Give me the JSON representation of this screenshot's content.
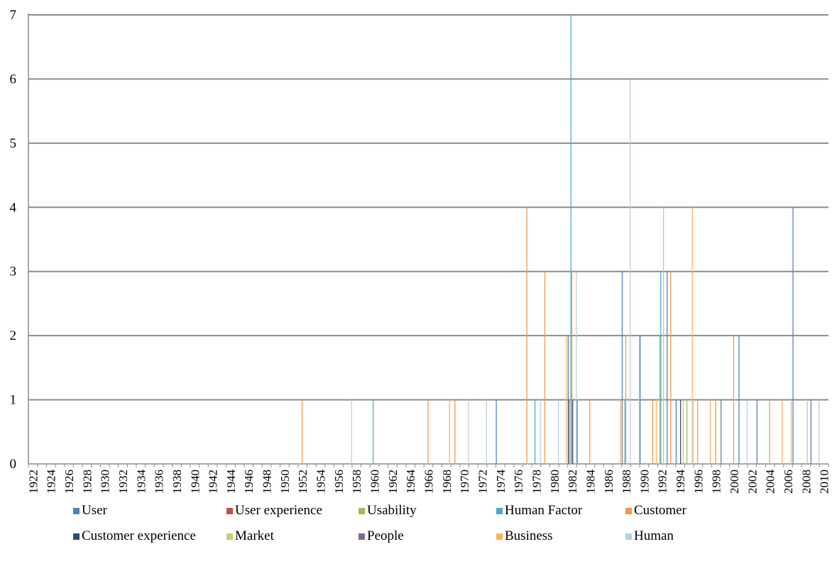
{
  "chart_data": {
    "type": "bar",
    "title": "",
    "xlabel": "",
    "ylabel": "",
    "ylim": [
      0,
      7
    ],
    "y_ticks": [
      "0",
      "1",
      "2",
      "3",
      "4",
      "5",
      "6",
      "7"
    ],
    "x_tick_labels": [
      "1922",
      "1924",
      "1926",
      "1928",
      "1930",
      "1932",
      "1934",
      "1936",
      "1938",
      "1940",
      "1942",
      "1944",
      "1946",
      "1948",
      "1950",
      "1952",
      "1954",
      "1956",
      "1958",
      "1960",
      "1962",
      "1964",
      "1966",
      "1968",
      "1970",
      "1972",
      "1974",
      "1976",
      "1978",
      "1980",
      "1982",
      "1984",
      "1986",
      "1988",
      "1990",
      "1992",
      "1994",
      "1996",
      "1998",
      "2000",
      "2002",
      "2004",
      "2006",
      "2008",
      "2010"
    ],
    "grid": true,
    "legend_position": "bottom",
    "years": [
      "1922",
      "1923",
      "1924",
      "1925",
      "1926",
      "1927",
      "1928",
      "1929",
      "1930",
      "1931",
      "1932",
      "1933",
      "1934",
      "1935",
      "1936",
      "1937",
      "1938",
      "1939",
      "1940",
      "1941",
      "1942",
      "1943",
      "1944",
      "1945",
      "1946",
      "1947",
      "1948",
      "1949",
      "1950",
      "1951",
      "1952",
      "1953",
      "1954",
      "1955",
      "1956",
      "1957",
      "1958",
      "1959",
      "1960",
      "1961",
      "1962",
      "1963",
      "1964",
      "1965",
      "1966",
      "1967",
      "1968",
      "1969",
      "1970",
      "1971",
      "1972",
      "1973",
      "1974",
      "1975",
      "1976",
      "1977",
      "1978",
      "1979",
      "1980",
      "1981",
      "1982",
      "1983",
      "1984",
      "1985",
      "1986",
      "1987",
      "1988",
      "1989",
      "1990",
      "1991",
      "1992",
      "1993",
      "1994",
      "1995",
      "1996",
      "1997",
      "1998",
      "1999",
      "2000",
      "2001",
      "2002",
      "2003",
      "2004",
      "2005",
      "2006",
      "2007",
      "2008",
      "2009",
      "2010"
    ],
    "series": [
      {
        "name": "User",
        "color": "#4f81bd",
        "points": [
          [
            "1974",
            1
          ],
          [
            "1982",
            2
          ],
          [
            "1983",
            1
          ],
          [
            "1988",
            3
          ],
          [
            "1990",
            2
          ],
          [
            "1993",
            3
          ],
          [
            "1994",
            1
          ],
          [
            "1999",
            1
          ],
          [
            "2001",
            2
          ],
          [
            "2003",
            1
          ],
          [
            "2007",
            4
          ],
          [
            "2009",
            1
          ]
        ]
      },
      {
        "name": "User experience",
        "color": "#c0504d",
        "points": [
          [
            "1982",
            1
          ]
        ]
      },
      {
        "name": "Usability",
        "color": "#9bbb59",
        "points": [
          [
            "1992",
            2
          ],
          [
            "1995",
            1
          ]
        ]
      },
      {
        "name": "Human Factor",
        "color": "#4bacc6",
        "points": [
          [
            "1960",
            1
          ],
          [
            "1978",
            1
          ],
          [
            "1982",
            7
          ],
          [
            "1988",
            1
          ],
          [
            "1992",
            3
          ]
        ]
      },
      {
        "name": "Customer",
        "color": "#f79646",
        "points": [
          [
            "1952",
            1
          ],
          [
            "1966",
            1
          ],
          [
            "1969",
            1
          ],
          [
            "1977",
            4
          ],
          [
            "1979",
            3
          ],
          [
            "1982",
            3
          ],
          [
            "1984",
            1
          ],
          [
            "1988",
            2
          ],
          [
            "1991",
            1
          ],
          [
            "1993",
            3
          ],
          [
            "1996",
            1
          ],
          [
            "1998",
            1
          ],
          [
            "2000",
            2
          ],
          [
            "2004",
            1
          ]
        ]
      },
      {
        "name": "Customer experience",
        "color": "#2c4d75",
        "points": [
          [
            "1982",
            1
          ],
          [
            "1994",
            1
          ]
        ]
      },
      {
        "name": "Market",
        "color": "#b8d57a",
        "points": [
          [
            "1992",
            4
          ],
          [
            "2008",
            1
          ]
        ]
      },
      {
        "name": "People",
        "color": "#8064a2",
        "points": []
      },
      {
        "name": "Business",
        "color": "#f9b459",
        "points": [
          [
            "1968",
            1
          ],
          [
            "1981",
            2
          ],
          [
            "1987",
            1
          ],
          [
            "1991",
            1
          ],
          [
            "1994",
            1
          ],
          [
            "1995",
            4
          ],
          [
            "1997",
            1
          ],
          [
            "2005",
            1
          ],
          [
            "2006",
            1
          ]
        ]
      },
      {
        "name": "Human",
        "color": "#b9cde5",
        "points": [
          [
            "1957",
            1
          ],
          [
            "1970",
            1
          ],
          [
            "1972",
            1
          ],
          [
            "1978",
            1
          ],
          [
            "1980",
            1
          ],
          [
            "1982",
            3
          ],
          [
            "1988",
            6
          ],
          [
            "1989",
            2
          ],
          [
            "1995",
            1
          ],
          [
            "2001",
            1
          ],
          [
            "2009",
            1
          ]
        ]
      }
    ]
  }
}
